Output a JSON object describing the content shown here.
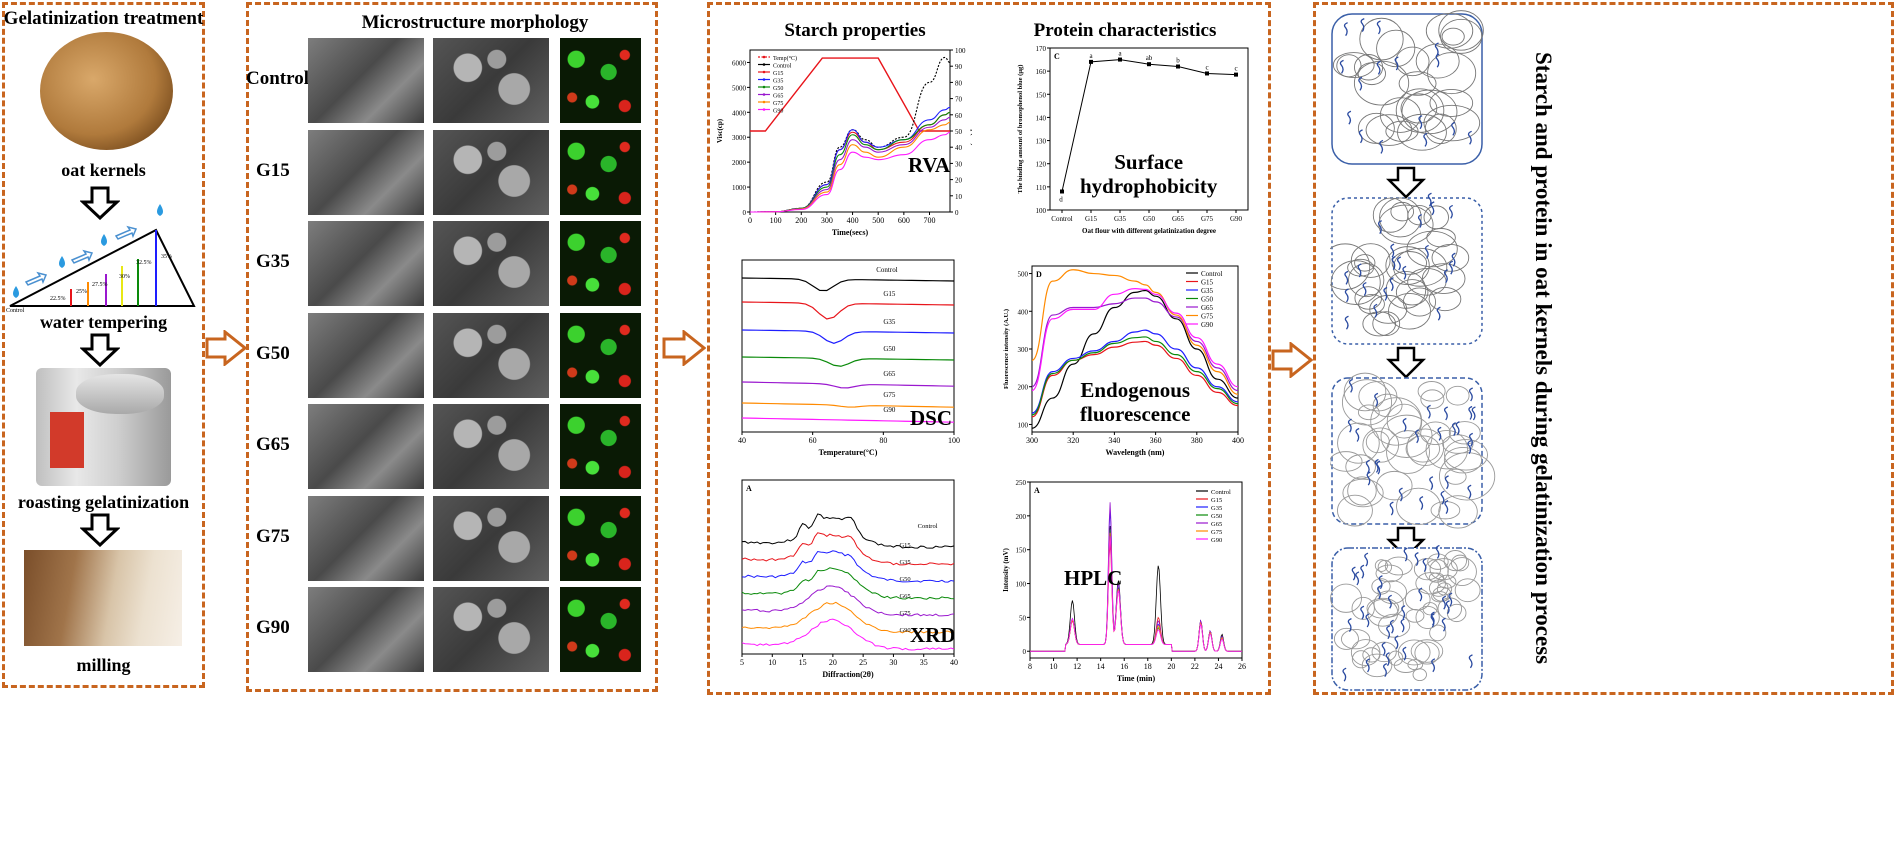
{
  "panel1": {
    "title": "Gelatinization treatment",
    "steps": [
      "oat kernels",
      "water tempering",
      "roasting gelatinization",
      "milling"
    ],
    "tempering_labels": [
      "Control",
      "22.5%",
      "25%",
      "27.5%",
      "30%",
      "32.5%",
      "35%"
    ]
  },
  "panel2": {
    "title": "Microstructure morphology",
    "rows": [
      "Control",
      "G15",
      "G35",
      "G50",
      "G65",
      "G75",
      "G90"
    ]
  },
  "panel3": {
    "titles": [
      "Starch properties",
      "Protein  characteristics"
    ],
    "method_labels": {
      "rva": "RVA",
      "surface": "Surface\nhydrophobicity",
      "dsc": "DSC",
      "fluor": "Endogenous\nfluorescence",
      "xrd": "XRD",
      "hplc": "HPLC"
    }
  },
  "panel4": {
    "title": "Starch and protein in oat kernels during gelatinization process"
  },
  "colors": {
    "border": "#c8651f",
    "series": [
      "#000000",
      "#e8141a",
      "#1e1eff",
      "#0a8a0a",
      "#9a18cf",
      "#ff8a00",
      "#ff18ff"
    ]
  },
  "chart_data": [
    {
      "type": "line",
      "panel_tag": "",
      "xlabel": "Time(secs)",
      "ylabel": "Visc(cp)",
      "y2label": "Temp(°C)",
      "xlim": [
        0,
        780
      ],
      "ylim": [
        0,
        6500
      ],
      "y2lim": [
        0,
        100
      ],
      "xticks": [
        0,
        100,
        200,
        300,
        400,
        500,
        600,
        700
      ],
      "yticks": [
        0,
        1000,
        2000,
        3000,
        4000,
        5000,
        6000
      ],
      "y2ticks": [
        0,
        10,
        20,
        30,
        40,
        50,
        60,
        70,
        80,
        90,
        100
      ],
      "legend": [
        "Temp(°C)",
        "Control",
        "G15",
        "G35",
        "G50",
        "G65",
        "G75",
        "G90"
      ],
      "temp": {
        "x": [
          0,
          60,
          282,
          500,
          660,
          780
        ],
        "y": [
          50,
          50,
          95,
          95,
          50,
          50
        ]
      },
      "x": [
        0,
        100,
        200,
        300,
        350,
        400,
        450,
        500,
        600,
        700,
        760,
        780
      ],
      "series": [
        {
          "name": "Control",
          "values": [
            0,
            10,
            150,
            1200,
            2600,
            3300,
            2900,
            2600,
            3000,
            5200,
            6200,
            6000
          ]
        },
        {
          "name": "G15",
          "values": [
            0,
            10,
            150,
            1100,
            2500,
            3200,
            2800,
            2500,
            2800,
            3500,
            3900,
            4000
          ]
        },
        {
          "name": "G35",
          "values": [
            0,
            10,
            150,
            1100,
            2500,
            3300,
            2800,
            2600,
            2900,
            3700,
            4100,
            4200
          ]
        },
        {
          "name": "G50",
          "values": [
            0,
            10,
            150,
            1000,
            2300,
            3100,
            2700,
            2500,
            2900,
            3500,
            3900,
            4000
          ]
        },
        {
          "name": "G65",
          "values": [
            0,
            10,
            130,
            900,
            2100,
            2900,
            2600,
            2400,
            2700,
            3400,
            3700,
            3800
          ]
        },
        {
          "name": "G75",
          "values": [
            0,
            10,
            120,
            800,
            1900,
            2700,
            2400,
            2200,
            2600,
            3300,
            3500,
            3600
          ]
        },
        {
          "name": "G90",
          "values": [
            0,
            10,
            100,
            700,
            1700,
            2400,
            2200,
            2100,
            2300,
            2900,
            3100,
            3200
          ]
        }
      ]
    },
    {
      "type": "line",
      "panel_tag": "C",
      "xlabel": "Oat flour with different gelatinization degree",
      "ylabel": "The binding amount of bromophenol blue (μg)",
      "ylim": [
        100,
        170
      ],
      "yticks": [
        100,
        110,
        120,
        130,
        140,
        150,
        160,
        170
      ],
      "categories": [
        "Control",
        "G15",
        "G35",
        "G50",
        "G65",
        "G75",
        "G90"
      ],
      "values": [
        108,
        164,
        165,
        163,
        162,
        159,
        158.5
      ],
      "annotations": [
        "d",
        "a",
        "a",
        "ab",
        "b",
        "c",
        "c"
      ]
    },
    {
      "type": "line",
      "xlabel": "Temperature(°C)",
      "xlim": [
        40,
        100
      ],
      "xticks": [
        40,
        60,
        80,
        100
      ],
      "series_labels": [
        "Control",
        "G15",
        "G35",
        "G50",
        "G65",
        "G75",
        "G90"
      ]
    },
    {
      "type": "line",
      "panel_tag": "D",
      "xlabel": "Wavelength (nm)",
      "ylabel": "Fluorescence intensity (A.U.)",
      "xlim": [
        300,
        400
      ],
      "ylim": [
        80,
        520
      ],
      "xticks": [
        300,
        320,
        340,
        360,
        380,
        400
      ],
      "yticks": [
        100,
        200,
        300,
        400,
        500
      ],
      "legend": [
        "Control",
        "G15",
        "G35",
        "G50",
        "G65",
        "G75",
        "G90"
      ],
      "x": [
        300,
        310,
        320,
        330,
        340,
        350,
        355,
        360,
        370,
        380,
        390,
        400
      ],
      "series": [
        {
          "name": "Control",
          "values": [
            90,
            170,
            260,
            340,
            410,
            450,
            455,
            440,
            380,
            300,
            220,
            170
          ]
        },
        {
          "name": "G15",
          "values": [
            120,
            230,
            270,
            285,
            305,
            318,
            320,
            310,
            275,
            230,
            185,
            150
          ]
        },
        {
          "name": "G35",
          "values": [
            130,
            240,
            275,
            295,
            320,
            345,
            350,
            340,
            300,
            250,
            200,
            160
          ]
        },
        {
          "name": "G50",
          "values": [
            125,
            235,
            270,
            290,
            315,
            330,
            332,
            320,
            285,
            240,
            195,
            155
          ]
        },
        {
          "name": "G65",
          "values": [
            200,
            390,
            410,
            410,
            420,
            435,
            435,
            425,
            385,
            320,
            250,
            190
          ]
        },
        {
          "name": "G75",
          "values": [
            270,
            480,
            510,
            500,
            495,
            480,
            470,
            450,
            390,
            310,
            240,
            180
          ]
        },
        {
          "name": "G90",
          "values": [
            190,
            380,
            405,
            405,
            445,
            460,
            458,
            445,
            395,
            330,
            260,
            200
          ]
        }
      ]
    },
    {
      "type": "line",
      "panel_tag": "A",
      "xlabel": "Diffraction(2θ)",
      "xlim": [
        5,
        40
      ],
      "xticks": [
        5,
        10,
        15,
        20,
        25,
        30,
        35,
        40
      ],
      "series_labels": [
        "Control",
        "G15",
        "G35",
        "G50",
        "G65",
        "G75",
        "G90"
      ]
    },
    {
      "type": "line",
      "panel_tag": "A",
      "xlabel": "Time (min)",
      "ylabel": "Intensity (mV)",
      "xlim": [
        8,
        26
      ],
      "ylim": [
        -10,
        250
      ],
      "xticks": [
        8,
        10,
        12,
        14,
        16,
        18,
        20,
        22,
        24,
        26
      ],
      "yticks": [
        0,
        50,
        100,
        150,
        200,
        250
      ],
      "legend": [
        "Control",
        "G15",
        "G35",
        "G50",
        "G65",
        "G75",
        "G90"
      ]
    }
  ]
}
